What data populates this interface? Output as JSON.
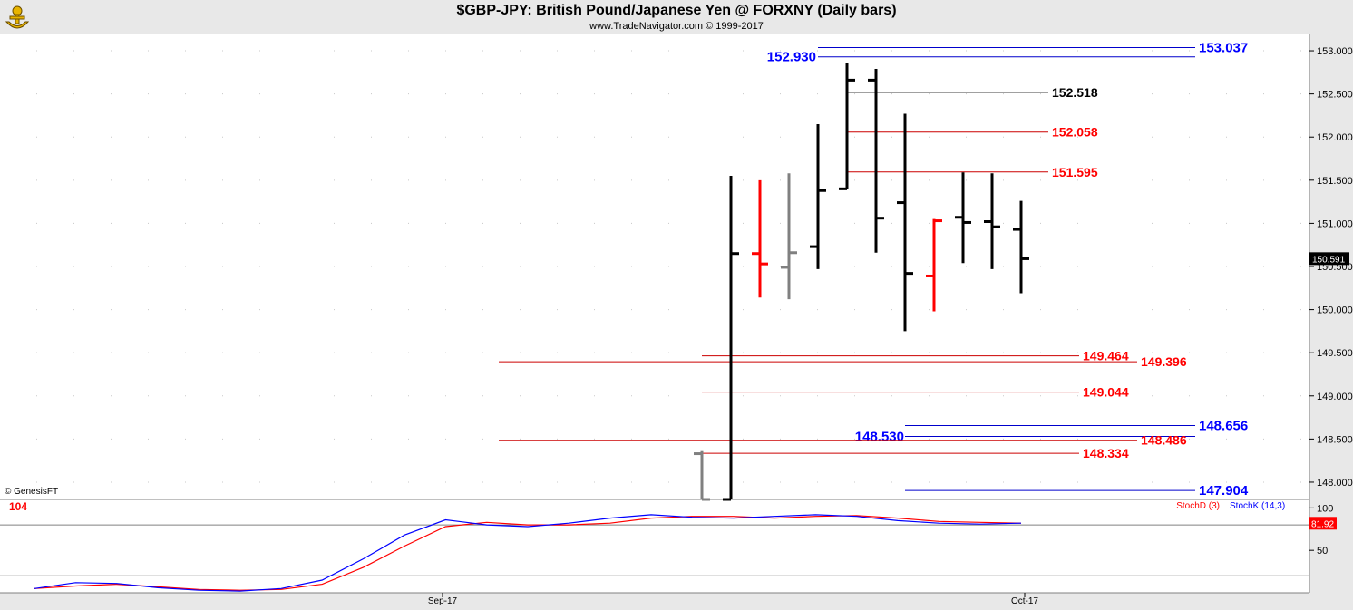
{
  "header": {
    "title": "$GBP-JPY:  British Pound/Japanese Yen @ FORXNY  (Daily bars)",
    "subtitle": "www.TradeNavigator.com © 1999-2017",
    "logo_icon": "anchor-trophy-logo"
  },
  "watermark": "© GenesisFT",
  "colors": {
    "panel_bg": "#ffffff",
    "outer_bg": "#e8e8e8",
    "up_bar": "#000000",
    "down_bar": "#ff0000",
    "neutral_bar": "#808080",
    "fib_red": "#cc0000",
    "fib_blue": "#0000cc",
    "stochD": "#ff0000",
    "stochK": "#0000ff"
  },
  "chart_data": [
    {
      "type": "ohlc",
      "panel": "price",
      "ylim": [
        147.8,
        153.2
      ],
      "yticks": [
        "153.000",
        "152.500",
        "152.000",
        "151.500",
        "151.000",
        "150.500",
        "150.000",
        "149.500",
        "149.000",
        "148.500",
        "148.000"
      ],
      "last_price_label": "150.591",
      "x_date_labels": [
        "Sep-17",
        "Oct-17"
      ],
      "bars": [
        {
          "o": 148.33,
          "h": 148.36,
          "l": 147.8,
          "c": 147.8,
          "color": "neutral"
        },
        {
          "o": 147.8,
          "h": 151.55,
          "l": 147.8,
          "c": 150.65,
          "color": "up"
        },
        {
          "o": 150.65,
          "h": 151.5,
          "l": 150.14,
          "c": 150.53,
          "color": "down"
        },
        {
          "o": 150.49,
          "h": 151.58,
          "l": 150.12,
          "c": 150.66,
          "color": "neutral"
        },
        {
          "o": 150.73,
          "h": 152.15,
          "l": 150.47,
          "c": 151.38,
          "color": "up"
        },
        {
          "o": 151.4,
          "h": 152.86,
          "l": 151.4,
          "c": 152.66,
          "color": "up"
        },
        {
          "o": 152.66,
          "h": 152.79,
          "l": 150.66,
          "c": 151.06,
          "color": "down_black"
        },
        {
          "o": 151.24,
          "h": 152.27,
          "l": 149.75,
          "c": 150.42,
          "color": "down_black"
        },
        {
          "o": 150.39,
          "h": 151.05,
          "l": 149.98,
          "c": 151.03,
          "color": "down"
        },
        {
          "o": 151.07,
          "h": 151.59,
          "l": 150.54,
          "c": 151.01,
          "color": "up"
        },
        {
          "o": 151.02,
          "h": 151.58,
          "l": 150.47,
          "c": 150.96,
          "color": "down_black"
        },
        {
          "o": 150.93,
          "h": 151.26,
          "l": 150.19,
          "c": 150.59,
          "color": "down_black"
        }
      ],
      "levels": [
        {
          "value": "153.037",
          "color": "blue",
          "label_side": "right"
        },
        {
          "value": "152.930",
          "color": "blue",
          "label_side": "left"
        },
        {
          "value": "152.518",
          "color": "black",
          "label_side": "right"
        },
        {
          "value": "152.058",
          "color": "red",
          "label_side": "right"
        },
        {
          "value": "151.595",
          "color": "red",
          "label_side": "right"
        },
        {
          "value": "149.464",
          "color": "red",
          "label_side": "right"
        },
        {
          "value": "149.396",
          "color": "red",
          "label_side": "right"
        },
        {
          "value": "149.044",
          "color": "red",
          "label_side": "right"
        },
        {
          "value": "148.656",
          "color": "blue",
          "label_side": "right"
        },
        {
          "value": "148.530",
          "color": "blue",
          "label_side": "left"
        },
        {
          "value": "148.486",
          "color": "red",
          "label_side": "right"
        },
        {
          "value": "148.334",
          "color": "red",
          "label_side": "right"
        },
        {
          "value": "147.904",
          "color": "blue",
          "label_side": "right"
        }
      ]
    },
    {
      "type": "line",
      "panel": "stochastic",
      "indicator_value_left": "104",
      "ylim": [
        0,
        110
      ],
      "yticks": [
        "100",
        "50"
      ],
      "last_value_label": "81.92",
      "series": [
        {
          "name": "StochD (3)",
          "color": "red",
          "values": [
            5,
            8,
            10,
            7,
            4,
            3,
            4,
            10,
            30,
            55,
            78,
            83,
            80,
            80,
            82,
            88,
            90,
            90,
            88,
            90,
            91,
            88,
            84,
            83,
            82
          ]
        },
        {
          "name": "StochK (14,3)",
          "color": "blue",
          "values": [
            5,
            12,
            11,
            6,
            3,
            2,
            5,
            15,
            40,
            68,
            86,
            80,
            78,
            82,
            88,
            92,
            89,
            88,
            90,
            92,
            90,
            85,
            82,
            81,
            82
          ]
        }
      ]
    }
  ]
}
